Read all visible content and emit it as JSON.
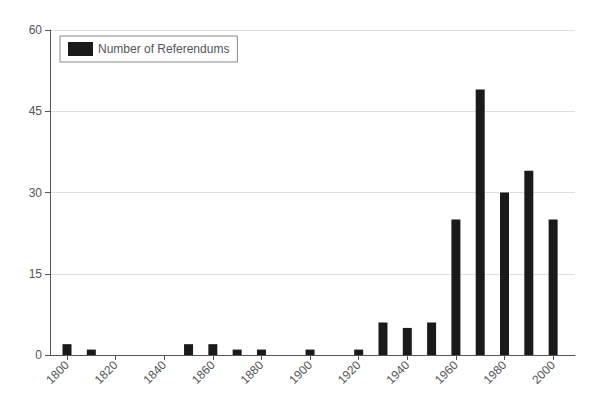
{
  "chart_data": {
    "type": "bar",
    "x": [
      1800,
      1810,
      1820,
      1830,
      1840,
      1850,
      1860,
      1870,
      1880,
      1890,
      1900,
      1910,
      1920,
      1930,
      1940,
      1950,
      1960,
      1970,
      1980,
      1990,
      2000
    ],
    "series": [
      {
        "name": "Number of Referendums",
        "color": "#1a1a1a",
        "values": [
          2,
          1,
          0,
          0,
          0,
          2,
          2,
          1,
          1,
          0,
          1,
          0,
          1,
          6,
          5,
          6,
          25,
          49,
          30,
          34,
          25
        ]
      }
    ],
    "xlim": [
      1793,
      2009
    ],
    "xticks": [
      1800,
      1820,
      1840,
      1860,
      1880,
      1900,
      1920,
      1940,
      1960,
      1980,
      2000
    ],
    "ylim": [
      0,
      60
    ],
    "yticks": [
      0,
      15,
      30,
      45,
      60
    ],
    "grid": true,
    "legend": "upper left"
  }
}
